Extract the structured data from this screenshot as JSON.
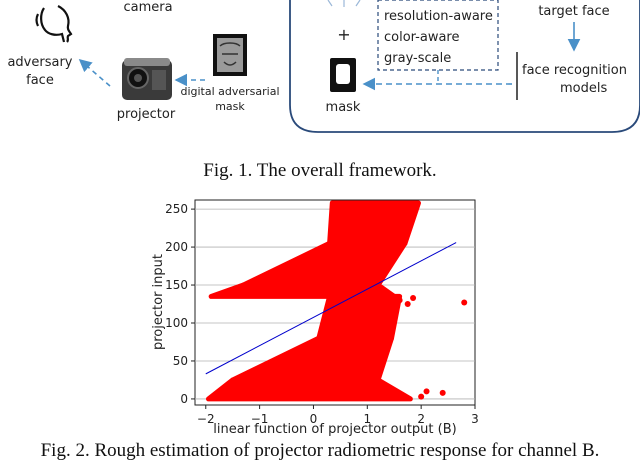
{
  "framework": {
    "labels": {
      "camera": "camera",
      "adversary_face_line1": "adversary",
      "adversary_face_line2": "face",
      "projector": "projector",
      "digital_mask_line1": "digital adversarial",
      "digital_mask_line2": "mask",
      "plus": "+",
      "mask": "mask",
      "target_face": "target face",
      "face_recognition_line1": "face recognition",
      "face_recognition_line2": "models"
    },
    "loss_box": [
      "resolution-aware",
      "color-aware",
      "gray-scale"
    ]
  },
  "figure1_caption": "Fig. 1.  The overall framework.",
  "figure2_caption": "Fig. 2.  Rough estimation of projector radiometric response for channel B.",
  "colors": {
    "points": "#ff0000",
    "fit_line": "#0000cc",
    "dashed_arrow": "#4a90c8",
    "frame": "#2a4a7a"
  },
  "chart_data": {
    "type": "scatter",
    "xlabel": "linear function of projector output (B)",
    "ylabel": "projector input",
    "xlim": [
      -2.2,
      3.0
    ],
    "ylim": [
      -8,
      262
    ],
    "x_ticks": [
      -2,
      -1,
      0,
      1,
      2,
      3
    ],
    "y_ticks": [
      0,
      50,
      100,
      150,
      200,
      250
    ],
    "grid": "horizontal",
    "series": [
      {
        "kind": "points",
        "color": "#ff0000",
        "bands": [
          {
            "y": [
              0,
              25
            ],
            "x_left_at_ymin": -1.95,
            "x_left_at_ymax": -1.5,
            "x_right_at_ymin": 1.8,
            "x_right_at_ymax": 1.2
          },
          {
            "y": [
              25,
              80
            ],
            "x_left_at_ymin": -1.5,
            "x_left_at_ymax": 0.1,
            "x_right_at_ymin": 1.2,
            "x_right_at_ymax": 1.45
          },
          {
            "y": [
              80,
              135
            ],
            "x_left_at_ymin": 0.1,
            "x_left_at_ymax": 0.3,
            "x_right_at_ymin": 1.45,
            "x_right_at_ymax": 1.6
          },
          {
            "y": [
              135,
              150
            ],
            "x_left_at_ymin": -1.9,
            "x_left_at_ymax": -1.3,
            "x_right_at_ymin": 1.5,
            "x_right_at_ymax": 1.2
          },
          {
            "y": [
              150,
              205
            ],
            "x_left_at_ymin": -1.3,
            "x_left_at_ymax": 0.3,
            "x_right_at_ymin": 1.2,
            "x_right_at_ymax": 1.7
          },
          {
            "y": [
              205,
              258
            ],
            "x_left_at_ymin": 0.3,
            "x_left_at_ymax": 0.35,
            "x_right_at_ymin": 1.7,
            "x_right_at_ymax": 1.95
          }
        ],
        "outliers": [
          {
            "x": 2.8,
            "y": 127
          },
          {
            "x": 2.4,
            "y": 8
          },
          {
            "x": 2.1,
            "y": 10
          },
          {
            "x": 2.0,
            "y": 3
          },
          {
            "x": 1.85,
            "y": 133
          },
          {
            "x": 1.75,
            "y": 125
          },
          {
            "x": 1.6,
            "y": 130
          }
        ]
      },
      {
        "kind": "fit_line",
        "color": "#0000cc",
        "from": {
          "x": -2.0,
          "y": 33
        },
        "to": {
          "x": 2.65,
          "y": 206
        }
      }
    ]
  }
}
